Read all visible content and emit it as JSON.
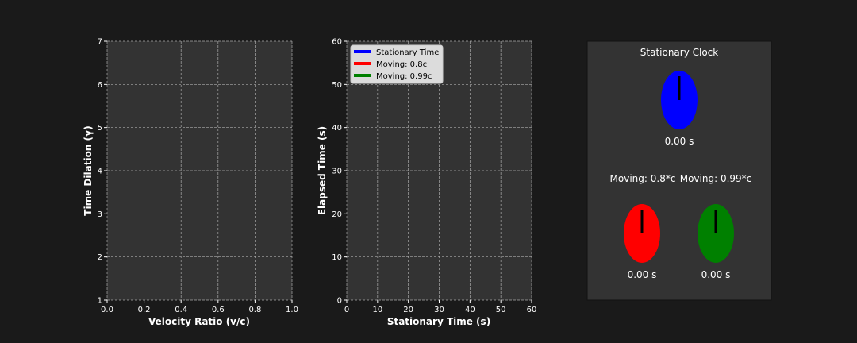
{
  "colors": {
    "background": "#1a1a1a",
    "axes_face": "#333333",
    "grid": "#aaaaaa",
    "text": "#ffffff",
    "stationary": "#0000ff",
    "moving_08": "#ff0000",
    "moving_099": "#008000",
    "legend_bg": "#dcdcdc",
    "hand": "#000000"
  },
  "chart_data": [
    {
      "type": "line",
      "title": "",
      "xlabel": "Velocity Ratio (v/c)",
      "ylabel": "Time Dilation (γ)",
      "xlim": [
        0.0,
        1.0
      ],
      "ylim": [
        1,
        7
      ],
      "xticks": [
        "0.0",
        "0.2",
        "0.4",
        "0.6",
        "0.8",
        "1.0"
      ],
      "yticks": [
        "1",
        "2",
        "3",
        "4",
        "5",
        "6",
        "7"
      ],
      "grid": true,
      "series": []
    },
    {
      "type": "line",
      "title": "",
      "xlabel": "Stationary Time (s)",
      "ylabel": "Elapsed Time (s)",
      "xlim": [
        0,
        60
      ],
      "ylim": [
        0,
        60
      ],
      "xticks": [
        "0",
        "10",
        "20",
        "30",
        "40",
        "50",
        "60"
      ],
      "yticks": [
        "0",
        "10",
        "20",
        "30",
        "40",
        "50",
        "60"
      ],
      "grid": true,
      "legend_position": "top-left",
      "series": [
        {
          "name": "Stationary Time",
          "color": "#0000ff",
          "x": [],
          "y": []
        },
        {
          "name": "Moving: 0.8c",
          "color": "#ff0000",
          "x": [],
          "y": []
        },
        {
          "name": "Moving: 0.99c",
          "color": "#008000",
          "x": [],
          "y": []
        }
      ]
    }
  ],
  "clock_panel": {
    "title": "Stationary Clock",
    "stationary_clock": {
      "reading": "0.00 s",
      "color": "#0000ff"
    },
    "moving_clocks": [
      {
        "label": "Moving: 0.8*c",
        "reading": "0.00 s",
        "color": "#ff0000"
      },
      {
        "label": "Moving: 0.99*c",
        "reading": "0.00 s",
        "color": "#008000"
      }
    ]
  }
}
